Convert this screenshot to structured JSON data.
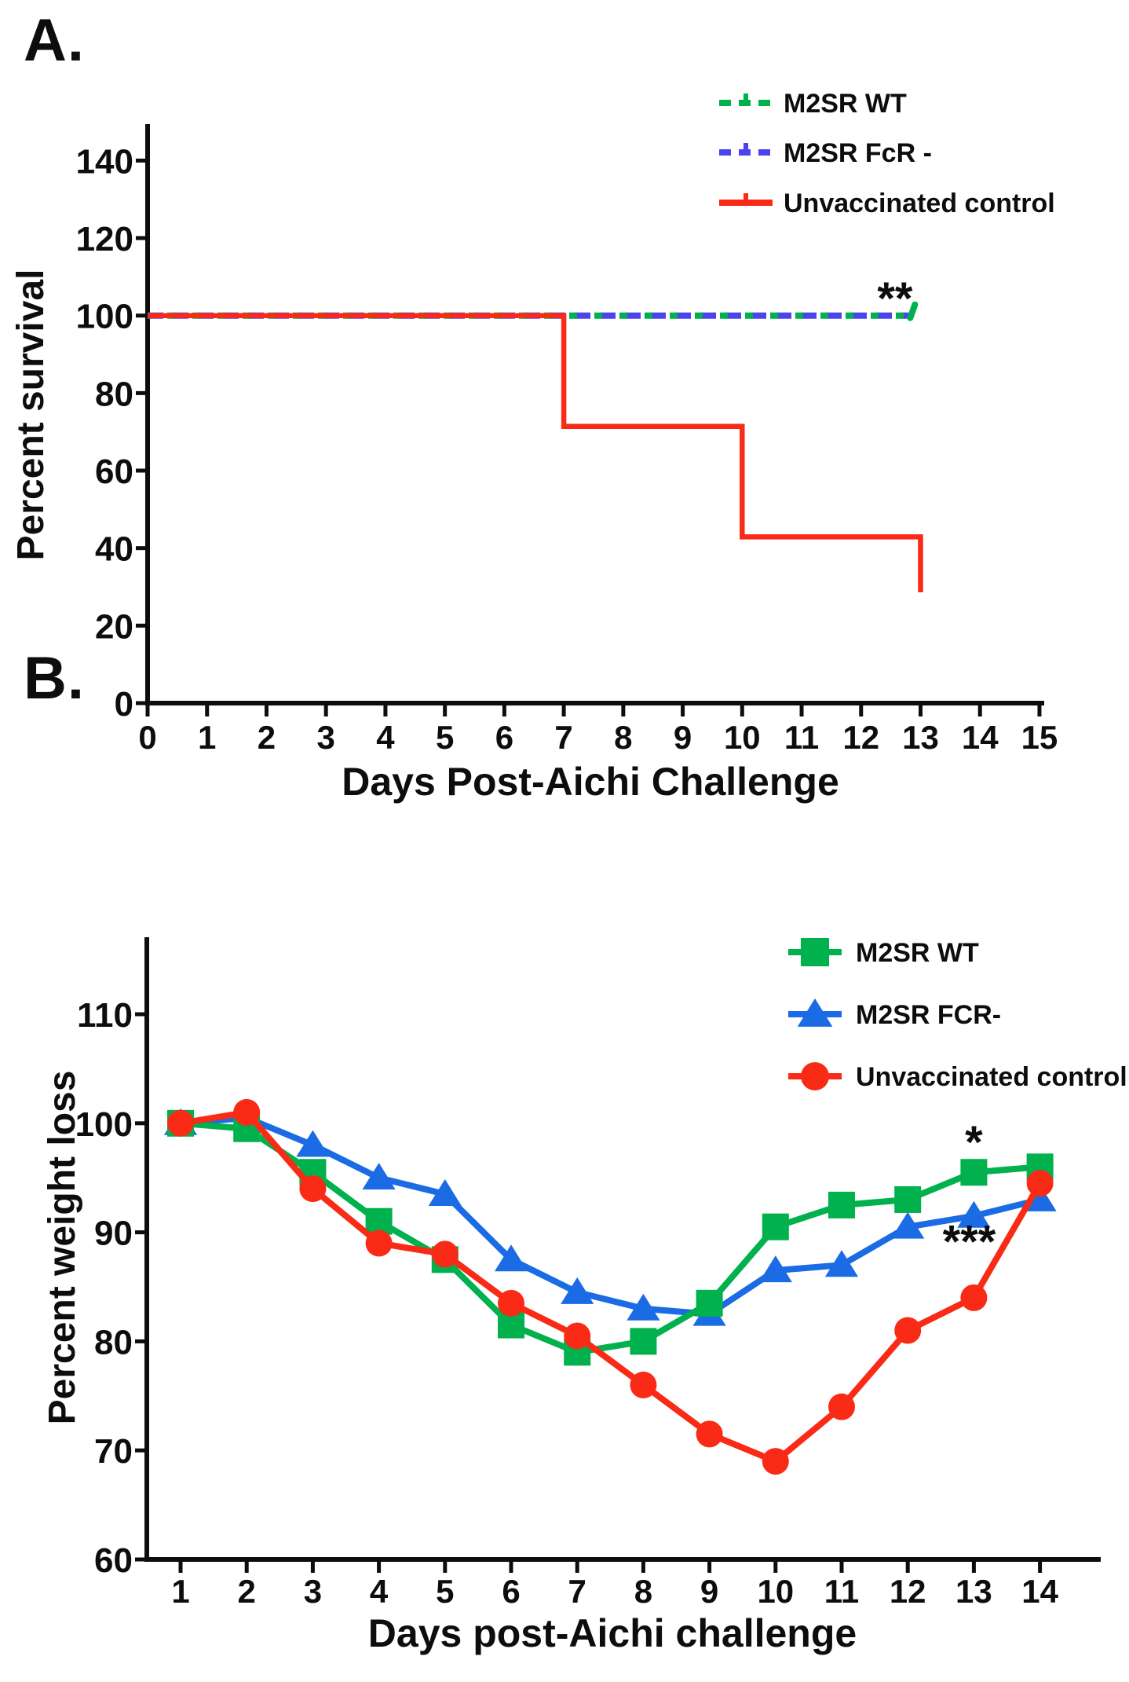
{
  "figure": {
    "background": "#ffffff",
    "panels": [
      {
        "id": "A",
        "label": "A.",
        "chart_data": {
          "type": "line",
          "title": "",
          "xlabel": "Days Post-Aichi Challenge",
          "ylabel": "Percent survival",
          "xlim": [
            0,
            15
          ],
          "ylim": [
            0,
            150
          ],
          "xticks": [
            0,
            1,
            2,
            3,
            4,
            5,
            6,
            7,
            8,
            9,
            10,
            11,
            12,
            13,
            14,
            15
          ],
          "yticks": [
            0,
            20,
            40,
            60,
            80,
            100,
            120,
            140
          ],
          "grid": false,
          "legend_position": "top-right",
          "series": [
            {
              "name": "M2SR WT",
              "color": "#00b14d",
              "line": "dashed",
              "marker": "none",
              "x": [
                0,
                12.8
              ],
              "y": [
                100,
                100
              ]
            },
            {
              "name": "M2SR FcR -",
              "color": "#4a43ee",
              "line": "dashed",
              "marker": "none",
              "x": [
                0,
                12.8
              ],
              "y": [
                100,
                100
              ]
            },
            {
              "name": "Unvaccinated control",
              "color": "#f92b16",
              "line": "solid",
              "marker": "none",
              "step": true,
              "x": [
                0,
                7,
                7,
                10,
                10,
                13,
                13
              ],
              "y": [
                100,
                100,
                71.4,
                71.4,
                42.9,
                42.9,
                28.6
              ]
            }
          ],
          "annotations": [
            {
              "text": "**",
              "x": 12.57,
              "y": 100.3
            }
          ]
        }
      },
      {
        "id": "B",
        "label": "B.",
        "chart_data": {
          "type": "line",
          "title": "",
          "xlabel": "Days post-Aichi challenge",
          "ylabel": "Percent weight loss",
          "xlim": [
            0.5,
            14.7
          ],
          "ylim": [
            60,
            115
          ],
          "xticks": [
            1,
            2,
            3,
            4,
            5,
            6,
            7,
            8,
            9,
            10,
            11,
            12,
            13,
            14
          ],
          "yticks": [
            60,
            70,
            80,
            90,
            100,
            110
          ],
          "grid": false,
          "legend_position": "top-right",
          "series": [
            {
              "name": "M2SR WT",
              "color": "#00b14d",
              "line": "solid",
              "marker": "square",
              "x": [
                1,
                2,
                3,
                4,
                5,
                6,
                7,
                8,
                9,
                10,
                11,
                12,
                13,
                14
              ],
              "y": [
                100,
                99.5,
                95.5,
                91,
                87.5,
                81.5,
                79,
                80,
                83.5,
                90.5,
                92.5,
                93,
                95.5,
                96
              ]
            },
            {
              "name": "M2SR FCR-",
              "color": "#1a6be4",
              "line": "solid",
              "marker": "triangle",
              "x": [
                1,
                2,
                3,
                4,
                5,
                6,
                7,
                8,
                9,
                10,
                11,
                12,
                13,
                14
              ],
              "y": [
                100,
                100.5,
                98,
                95,
                93.5,
                87.5,
                84.5,
                83,
                82.5,
                86.5,
                87,
                90.5,
                91.5,
                93
              ]
            },
            {
              "name": "Unvaccinated control",
              "color": "#f92b16",
              "line": "solid",
              "marker": "circle",
              "x": [
                1,
                2,
                3,
                4,
                5,
                6,
                7,
                8,
                9,
                10,
                11,
                12,
                13,
                14
              ],
              "y": [
                100,
                101,
                94,
                89,
                88,
                83.5,
                80.5,
                76,
                71.5,
                69,
                74,
                81,
                84,
                94.5
              ]
            }
          ],
          "annotations": [
            {
              "text": "*",
              "x": 13.0,
              "y": 96.8
            },
            {
              "text": "***",
              "x": 12.93,
              "y": 87.7
            }
          ]
        }
      }
    ]
  }
}
